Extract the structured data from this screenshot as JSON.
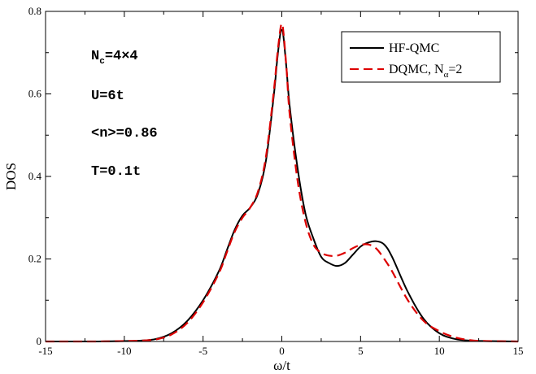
{
  "chart_data": {
    "type": "line",
    "xlabel": "ω/t",
    "ylabel": "DOS",
    "xlim": [
      -15,
      15
    ],
    "ylim": [
      0,
      0.8
    ],
    "x_ticks": [
      -15,
      -10,
      -5,
      0,
      5,
      10,
      15
    ],
    "x_tick_labels": [
      "-15",
      "-10",
      "-5",
      "0",
      "5",
      "10",
      "15"
    ],
    "y_ticks": [
      0,
      0.2,
      0.4,
      0.6,
      0.8
    ],
    "y_tick_labels": [
      "0",
      "0.2",
      "0.4",
      "0.6",
      "0.8"
    ],
    "grid": false,
    "legend_position": "top-right",
    "annotations": [
      {
        "main": "N",
        "sub": "c",
        "rest": "=4×4"
      },
      {
        "main": "U=6t"
      },
      {
        "main": "<n>=0.86"
      },
      {
        "main": "T=0.1t"
      }
    ],
    "series": [
      {
        "name": "HF-QMC",
        "legend_main": "HF-QMC",
        "legend_sub": "",
        "legend_rest": "",
        "color": "#000000",
        "style": "solid",
        "x": [
          -15,
          -12,
          -10,
          -9,
          -8,
          -7,
          -6,
          -5,
          -4,
          -3.5,
          -3,
          -2.5,
          -2,
          -1.5,
          -1,
          -0.5,
          -0.3,
          -0.1,
          0,
          0.1,
          0.3,
          0.5,
          1,
          1.5,
          2,
          2.5,
          3,
          3.5,
          4,
          4.5,
          5,
          5.5,
          6,
          6.5,
          7,
          8,
          9,
          10,
          11,
          12,
          13,
          15
        ],
        "y": [
          0,
          0,
          0.001,
          0.002,
          0.006,
          0.02,
          0.05,
          0.1,
          0.17,
          0.22,
          0.27,
          0.305,
          0.325,
          0.36,
          0.44,
          0.6,
          0.68,
          0.745,
          0.755,
          0.74,
          0.66,
          0.57,
          0.42,
          0.31,
          0.25,
          0.205,
          0.19,
          0.183,
          0.19,
          0.21,
          0.23,
          0.24,
          0.243,
          0.235,
          0.205,
          0.12,
          0.055,
          0.02,
          0.006,
          0.002,
          0.001,
          0
        ]
      },
      {
        "name": "DQMC, Nα=2",
        "legend_main": "DQMC, N",
        "legend_sub": "α",
        "legend_rest": "=2",
        "color": "#dd0000",
        "style": "dashed",
        "x": [
          -15,
          -12,
          -10,
          -9,
          -8,
          -7,
          -6,
          -5,
          -4,
          -3.5,
          -3,
          -2.5,
          -2,
          -1.5,
          -1,
          -0.5,
          -0.3,
          -0.1,
          0,
          0.1,
          0.3,
          0.5,
          1,
          1.5,
          2,
          2.5,
          3,
          3.5,
          4,
          4.5,
          5,
          5.5,
          6,
          6.5,
          7,
          8,
          9,
          10,
          11,
          12,
          13,
          15
        ],
        "y": [
          0,
          0,
          0.001,
          0.002,
          0.005,
          0.017,
          0.045,
          0.095,
          0.165,
          0.215,
          0.265,
          0.3,
          0.325,
          0.365,
          0.45,
          0.61,
          0.69,
          0.755,
          0.77,
          0.75,
          0.66,
          0.55,
          0.39,
          0.29,
          0.235,
          0.215,
          0.208,
          0.208,
          0.215,
          0.226,
          0.234,
          0.235,
          0.225,
          0.2,
          0.17,
          0.1,
          0.05,
          0.025,
          0.01,
          0.003,
          0.001,
          0
        ]
      }
    ]
  }
}
